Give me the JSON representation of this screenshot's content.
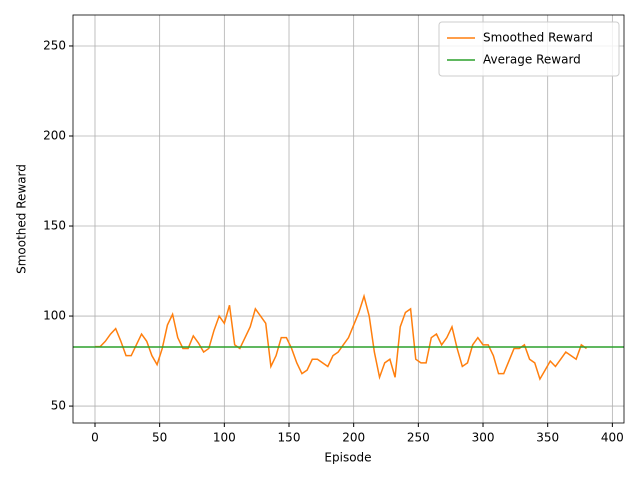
{
  "chart_data": {
    "type": "line",
    "xlabel": "Episode",
    "ylabel": "Smoothed Reward",
    "x": [
      0,
      4,
      8,
      12,
      16,
      20,
      24,
      28,
      32,
      36,
      40,
      44,
      48,
      52,
      56,
      60,
      64,
      68,
      72,
      76,
      80,
      84,
      88,
      92,
      96,
      100,
      104,
      108,
      112,
      116,
      120,
      124,
      128,
      132,
      136,
      140,
      144,
      148,
      152,
      156,
      160,
      164,
      168,
      172,
      176,
      180,
      184,
      188,
      192,
      196,
      200,
      204,
      208,
      212,
      216,
      220,
      224,
      228,
      232,
      236,
      240,
      244,
      248,
      252,
      256,
      260,
      264,
      268,
      272,
      276,
      280,
      284,
      288,
      292,
      296,
      300,
      304,
      308,
      312,
      316,
      320,
      324,
      328,
      332,
      336,
      340,
      344,
      348,
      352,
      356,
      360,
      364,
      368,
      372,
      376,
      380
    ],
    "series": [
      {
        "name": "Smoothed Reward",
        "color": "#ff7f0e",
        "values": [
          83,
          83,
          86,
          90,
          93,
          86,
          78,
          78,
          84,
          90,
          86,
          78,
          73,
          82,
          95,
          101,
          88,
          82,
          82,
          89,
          85,
          80,
          82,
          92,
          100,
          96,
          106,
          84,
          82,
          88,
          94,
          104,
          100,
          96,
          72,
          78,
          88,
          88,
          82,
          74,
          68,
          70,
          76,
          76,
          74,
          72,
          78,
          80,
          84,
          88,
          95,
          102,
          111,
          100,
          80,
          66,
          74,
          76,
          66,
          94,
          102,
          104,
          76,
          74,
          74,
          88,
          90,
          84,
          88,
          94,
          82,
          72,
          74,
          84,
          88,
          84,
          84,
          78,
          68,
          68,
          75,
          82,
          82,
          84,
          76,
          74,
          65,
          70,
          75,
          72,
          76,
          80,
          78,
          76,
          84,
          82
        ]
      },
      {
        "name": "Average Reward",
        "color": "#2ca02c",
        "value": 82.8
      }
    ],
    "xlim": [
      -17,
      409
    ],
    "ylim": [
      40.6,
      267.2
    ],
    "xticks": [
      0,
      50,
      100,
      150,
      200,
      250,
      300,
      350,
      400
    ],
    "yticks": [
      50,
      100,
      150,
      200,
      250
    ],
    "grid": true,
    "legend": "upper-right"
  }
}
